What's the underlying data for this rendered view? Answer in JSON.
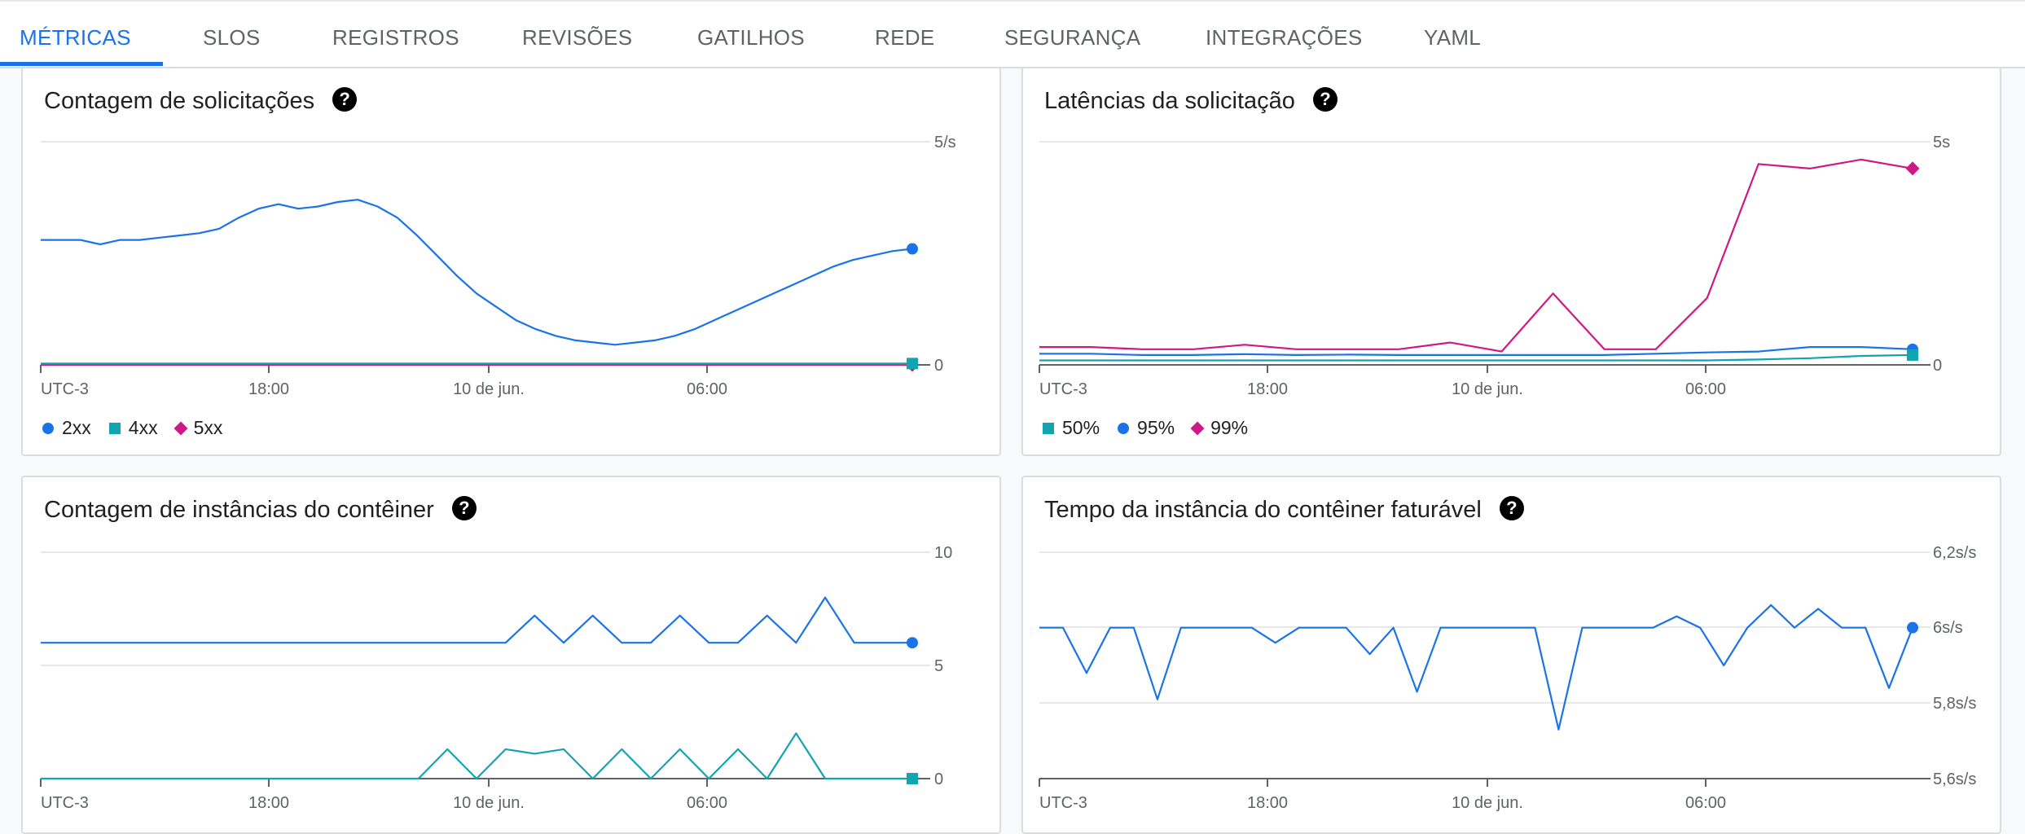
{
  "tabs": [
    {
      "label": "MÉTRICAS",
      "active": true
    },
    {
      "label": "SLOS"
    },
    {
      "label": "REGISTROS"
    },
    {
      "label": "REVISÕES"
    },
    {
      "label": "GATILHOS"
    },
    {
      "label": "REDE"
    },
    {
      "label": "SEGURANÇA"
    },
    {
      "label": "INTEGRAÇÕES"
    },
    {
      "label": "YAML"
    }
  ],
  "colors": {
    "accent": "#1a73e8",
    "series_blue": "#1a73e8",
    "series_teal": "#12a4af",
    "series_magenta": "#d01884"
  },
  "panels": {
    "requests": {
      "title": "Contagem de solicitações",
      "help_icon": "?"
    },
    "latency": {
      "title": "Latências da solicitação",
      "help_icon": "?"
    },
    "instances": {
      "title": "Contagem de instâncias do contêiner",
      "help_icon": "?"
    },
    "billable": {
      "title": "Tempo da instância do contêiner faturável",
      "help_icon": "?"
    }
  },
  "chart_data": [
    {
      "id": "requests",
      "type": "line",
      "x_ticks": [
        "UTC-3",
        "18:00",
        "10 de jun.",
        "06:00"
      ],
      "y_ticks": [
        "5/s",
        "0"
      ],
      "ylim": [
        0,
        5
      ],
      "legend_placement": "bottom-left",
      "series": [
        {
          "name": "2xx",
          "marker": "dot",
          "color": "#1a73e8",
          "values": [
            2.8,
            2.8,
            2.8,
            2.7,
            2.8,
            2.8,
            2.85,
            2.9,
            2.95,
            3.05,
            3.3,
            3.5,
            3.6,
            3.5,
            3.55,
            3.65,
            3.7,
            3.55,
            3.3,
            2.9,
            2.45,
            2.0,
            1.6,
            1.3,
            1.0,
            0.8,
            0.65,
            0.55,
            0.5,
            0.45,
            0.5,
            0.55,
            0.65,
            0.8,
            1.0,
            1.2,
            1.4,
            1.6,
            1.8,
            2.0,
            2.2,
            2.35,
            2.45,
            2.55,
            2.6
          ]
        },
        {
          "name": "4xx",
          "marker": "square",
          "color": "#12a4af",
          "values": [
            0.03,
            0.03,
            0.03,
            0.03,
            0.03,
            0.03,
            0.03,
            0.03,
            0.03,
            0.03
          ]
        },
        {
          "name": "5xx",
          "marker": "diamond",
          "color": "#d01884",
          "values": [
            0,
            0,
            0,
            0,
            0,
            0,
            0,
            0,
            0,
            0
          ]
        }
      ]
    },
    {
      "id": "latency",
      "type": "line",
      "x_ticks": [
        "UTC-3",
        "18:00",
        "10 de jun.",
        "06:00"
      ],
      "y_ticks": [
        "5s",
        "0"
      ],
      "ylim": [
        0,
        5
      ],
      "legend_placement": "bottom-left",
      "series": [
        {
          "name": "50%",
          "marker": "square",
          "color": "#12a4af",
          "values": [
            0.1,
            0.1,
            0.1,
            0.1,
            0.1,
            0.1,
            0.1,
            0.1,
            0.1,
            0.1,
            0.1,
            0.1,
            0.1,
            0.1,
            0.12,
            0.15,
            0.2,
            0.22
          ]
        },
        {
          "name": "95%",
          "marker": "dot",
          "color": "#1a73e8",
          "values": [
            0.25,
            0.25,
            0.22,
            0.22,
            0.24,
            0.22,
            0.23,
            0.22,
            0.22,
            0.22,
            0.22,
            0.22,
            0.25,
            0.28,
            0.3,
            0.4,
            0.4,
            0.35
          ]
        },
        {
          "name": "99%",
          "marker": "diamond",
          "color": "#d01884",
          "values": [
            0.4,
            0.4,
            0.35,
            0.35,
            0.45,
            0.35,
            0.35,
            0.35,
            0.5,
            0.3,
            1.6,
            0.35,
            0.35,
            1.5,
            4.5,
            4.4,
            4.6,
            4.4
          ]
        }
      ]
    },
    {
      "id": "instances",
      "type": "line",
      "x_ticks": [
        "UTC-3",
        "18:00",
        "10 de jun.",
        "06:00"
      ],
      "y_ticks": [
        "10",
        "5",
        "0"
      ],
      "ylim": [
        0,
        10
      ],
      "series": [
        {
          "color": "#1a73e8",
          "marker": "dot",
          "values": [
            6,
            6,
            6,
            6,
            6,
            6,
            6,
            6,
            6,
            6,
            6,
            6,
            6,
            6,
            6,
            6,
            6,
            7.2,
            6,
            7.2,
            6,
            6,
            7.2,
            6,
            6,
            7.2,
            6,
            8,
            6,
            6,
            6
          ]
        },
        {
          "color": "#12a4af",
          "marker": "square",
          "values": [
            0,
            0,
            0,
            0,
            0,
            0,
            0,
            0,
            0,
            0,
            0,
            0,
            0,
            0,
            1.3,
            0,
            1.3,
            1.1,
            1.3,
            0,
            1.3,
            0,
            1.3,
            0,
            1.3,
            0,
            2,
            0,
            0,
            0,
            0
          ]
        }
      ]
    },
    {
      "id": "billable",
      "type": "line",
      "x_ticks": [
        "UTC-3",
        "18:00",
        "10 de jun.",
        "06:00"
      ],
      "y_ticks": [
        "6,2s/s",
        "6s/s",
        "5,8s/s",
        "5,6s/s"
      ],
      "ylim": [
        5.6,
        6.2
      ],
      "series": [
        {
          "color": "#1a73e8",
          "marker": "dot",
          "values": [
            6,
            6,
            5.88,
            6,
            6,
            5.81,
            6,
            6,
            6,
            6,
            5.96,
            6,
            6,
            6,
            5.93,
            6,
            5.83,
            6,
            6,
            6,
            6,
            6,
            5.73,
            6,
            6,
            6,
            6,
            6.03,
            6,
            5.9,
            6,
            6.06,
            6,
            6.05,
            6,
            6,
            5.84,
            6
          ]
        }
      ]
    }
  ]
}
